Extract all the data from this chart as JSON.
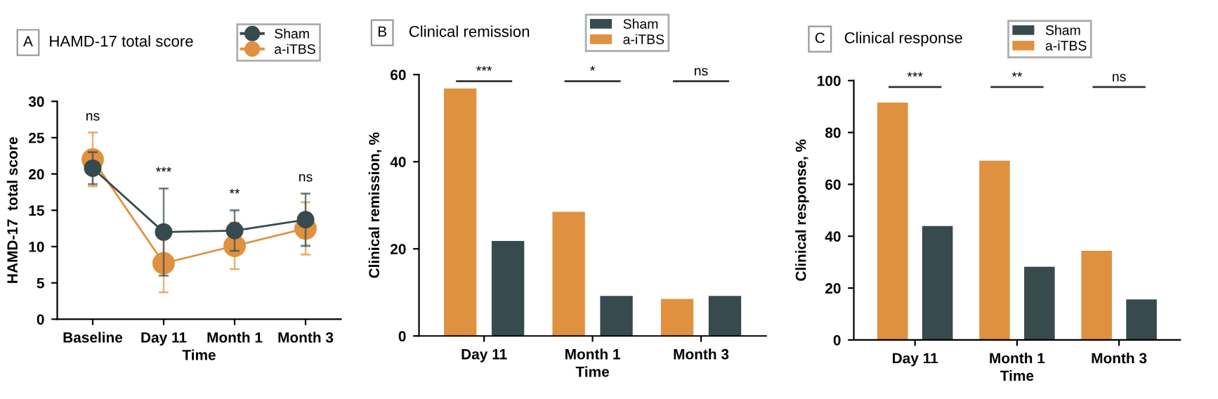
{
  "chart_data": [
    {
      "type": "line",
      "title": "HAMD-17 total score",
      "xlabel": "Time",
      "ylabel": "HAMD-17  total score",
      "categories": [
        "Baseline",
        "Day 11",
        "Month 1",
        "Month 3"
      ],
      "ylim": [
        0,
        30
      ],
      "yticks": [
        0,
        5,
        10,
        15,
        20,
        25,
        30
      ],
      "marker": "circle",
      "line_style": "solid",
      "legend": "top",
      "grid": false,
      "series": [
        {
          "name": "a-iTBS",
          "color": "#e0913f",
          "values": [
            22.0,
            7.7,
            10.1,
            12.5
          ],
          "errors": [
            3.7,
            4.0,
            3.2,
            3.6
          ]
        },
        {
          "name": "Sham",
          "color": "#374b4f",
          "values": [
            20.8,
            12.0,
            12.2,
            13.7
          ],
          "errors": [
            2.2,
            6.0,
            2.8,
            3.6
          ]
        }
      ],
      "annotations": [
        "A",
        "ns",
        "***",
        "**",
        "ns"
      ]
    },
    {
      "type": "bar",
      "title": "Clinical remission",
      "xlabel": "Time",
      "ylabel": "Clinical remission, %",
      "categories": [
        "Day 11",
        "Month 1",
        "Month 3"
      ],
      "ylim": [
        0,
        60
      ],
      "yticks": [
        0,
        20,
        40,
        60
      ],
      "legend": "top",
      "grid": false,
      "series": [
        {
          "name": "a-iTBS",
          "color": "#e0913f",
          "values": [
            56.8,
            28.5,
            8.5
          ]
        },
        {
          "name": "Sham",
          "color": "#374b4f",
          "values": [
            21.8,
            9.2,
            9.2
          ]
        }
      ],
      "annotations": [
        "B",
        "***",
        "*",
        "ns"
      ]
    },
    {
      "type": "bar",
      "title": "Clinical response",
      "xlabel": "Time",
      "ylabel": "Clinical response, %",
      "categories": [
        "Day 11",
        "Month 1",
        "Month 3"
      ],
      "ylim": [
        0,
        100
      ],
      "yticks": [
        0,
        20,
        40,
        60,
        80,
        100
      ],
      "legend": "top",
      "grid": false,
      "series": [
        {
          "name": "a-iTBS",
          "color": "#e0913f",
          "values": [
            91.5,
            69.1,
            34.4
          ]
        },
        {
          "name": "Sham",
          "color": "#374b4f",
          "values": [
            43.9,
            28.2,
            15.6
          ]
        }
      ],
      "annotations": [
        "C",
        "***",
        "**",
        "ns"
      ]
    }
  ]
}
